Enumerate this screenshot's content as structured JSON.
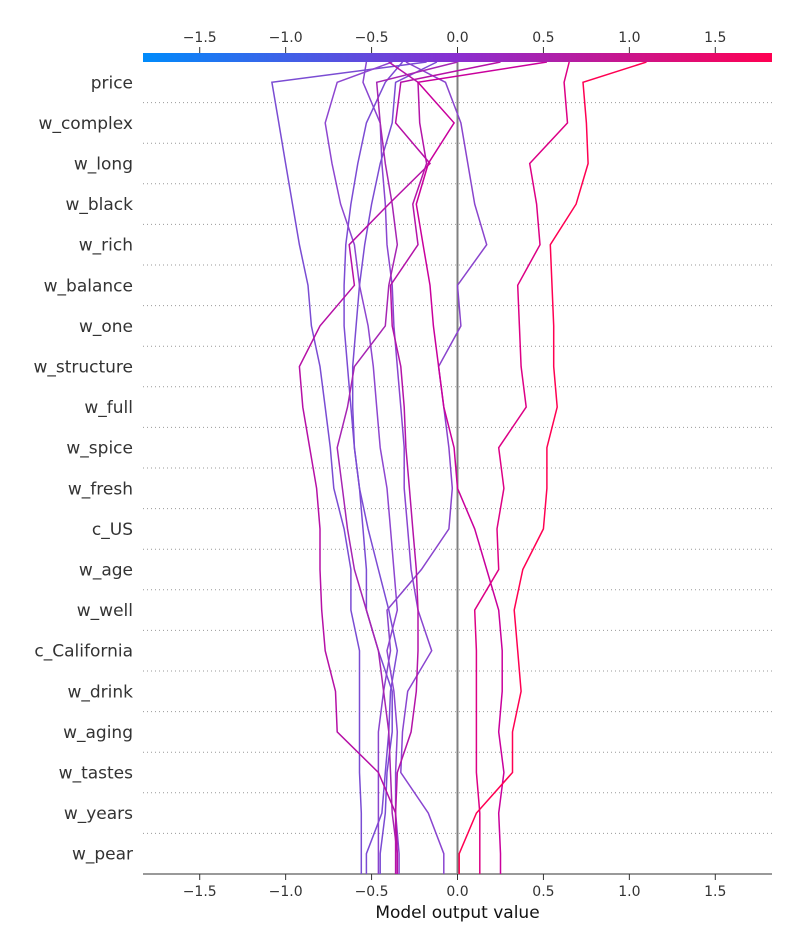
{
  "chart_data": {
    "type": "line",
    "subtype": "shap-decision-plot",
    "xlabel": "Model output value",
    "xlim": [
      -1.83,
      1.83
    ],
    "x_ticks": [
      -1.5,
      -1.0,
      -0.5,
      0.0,
      0.5,
      1.0,
      1.5
    ],
    "x_tick_labels": [
      "−1.5",
      "−1.0",
      "−0.5",
      "0.0",
      "0.5",
      "1.0",
      "1.5"
    ],
    "base_value": 0.0,
    "colormap": {
      "low": "#008bfb",
      "mid": "#8a2ed0",
      "high": "#ff0052"
    },
    "features": [
      "price",
      "w_complex",
      "w_long",
      "w_black",
      "w_rich",
      "w_balance",
      "w_one",
      "w_structure",
      "w_full",
      "w_spice",
      "w_fresh",
      "c_US",
      "w_age",
      "w_well",
      "c_California",
      "w_drink",
      "w_aging",
      "w_tastes",
      "w_years",
      "w_pear"
    ],
    "series": [
      {
        "color": "#8a45d0",
        "values": [
          -0.53,
          -0.55,
          -0.45,
          -0.44,
          -0.42,
          -0.41,
          -0.38,
          -0.37,
          -0.35,
          -0.33,
          -0.31,
          -0.31,
          -0.29,
          -0.27,
          -0.23,
          -0.15,
          -0.29,
          -0.32,
          -0.33,
          -0.17,
          -0.08
        ]
      },
      {
        "color": "#7c4bd4",
        "values": [
          -0.32,
          -0.42,
          -0.53,
          -0.58,
          -0.62,
          -0.65,
          -0.66,
          -0.66,
          -0.64,
          -0.62,
          -0.6,
          -0.57,
          -0.52,
          -0.46,
          -0.4,
          -0.35,
          -0.39,
          -0.4,
          -0.42,
          -0.44,
          -0.53
        ]
      },
      {
        "color": "#7b4bd3",
        "values": [
          -0.12,
          -0.36,
          -0.38,
          -0.45,
          -0.5,
          -0.54,
          -0.57,
          -0.59,
          -0.61,
          -0.61,
          -0.6,
          -0.57,
          -0.55,
          -0.53,
          -0.53,
          -0.46,
          -0.38,
          -0.38,
          -0.41,
          -0.42,
          -0.45
        ]
      },
      {
        "color": "#7a4cd3",
        "values": [
          -0.18,
          -1.08,
          -1.04,
          -1.0,
          -0.96,
          -0.92,
          -0.87,
          -0.85,
          -0.8,
          -0.77,
          -0.74,
          -0.72,
          -0.66,
          -0.62,
          -0.62,
          -0.57,
          -0.57,
          -0.57,
          -0.57,
          -0.56,
          -0.56
        ]
      },
      {
        "color": "#8e46d0",
        "values": [
          -0.38,
          -0.7,
          -0.77,
          -0.73,
          -0.68,
          -0.6,
          -0.57,
          -0.52,
          -0.49,
          -0.47,
          -0.45,
          -0.41,
          -0.39,
          -0.37,
          -0.35,
          -0.41,
          -0.37,
          -0.35,
          -0.36,
          -0.36,
          -0.34
        ]
      },
      {
        "color": "#8a44cd",
        "values": [
          -0.3,
          -0.07,
          0.02,
          0.06,
          0.1,
          0.17,
          0.0,
          0.02,
          -0.11,
          -0.08,
          -0.05,
          -0.03,
          -0.05,
          -0.21,
          -0.41,
          -0.39,
          -0.43,
          -0.46,
          -0.46,
          -0.46,
          -0.46
        ]
      },
      {
        "color": "#a625b3",
        "values": [
          0.0,
          -0.47,
          -0.45,
          -0.42,
          -0.38,
          -0.35,
          -0.4,
          -0.42,
          -0.6,
          -0.64,
          -0.7,
          -0.67,
          -0.64,
          -0.6,
          -0.53,
          -0.46,
          -0.43,
          -0.4,
          -0.39,
          -0.38,
          -0.35
        ]
      },
      {
        "color": "#b414a8",
        "values": [
          -0.4,
          -0.23,
          -0.22,
          -0.18,
          -0.26,
          -0.23,
          -0.39,
          -0.38,
          -0.33,
          -0.31,
          -0.3,
          -0.28,
          -0.26,
          -0.24,
          -0.23,
          -0.23,
          -0.24,
          -0.27,
          -0.35,
          -0.36,
          -0.36
        ]
      },
      {
        "color": "#b610a6",
        "values": [
          0.25,
          -0.33,
          -0.36,
          -0.16,
          -0.4,
          -0.63,
          -0.6,
          -0.8,
          -0.92,
          -0.9,
          -0.86,
          -0.82,
          -0.8,
          -0.8,
          -0.79,
          -0.77,
          -0.71,
          -0.7,
          -0.46,
          -0.36,
          -0.35
        ]
      },
      {
        "color": "#c9009c",
        "values": [
          0.52,
          -0.23,
          -0.02,
          -0.17,
          -0.24,
          -0.2,
          -0.16,
          -0.14,
          -0.11,
          -0.08,
          -0.02,
          0.0,
          0.1,
          0.17,
          0.24,
          0.26,
          0.26,
          0.24,
          0.27,
          0.24,
          0.25
        ]
      },
      {
        "color": "#dd0085",
        "values": [
          0.65,
          0.62,
          0.64,
          0.42,
          0.46,
          0.48,
          0.35,
          0.36,
          0.37,
          0.4,
          0.24,
          0.27,
          0.23,
          0.24,
          0.1,
          0.11,
          0.11,
          0.11,
          0.11,
          0.13,
          0.13
        ]
      },
      {
        "color": "#ff0052",
        "values": [
          1.1,
          0.73,
          0.75,
          0.76,
          0.69,
          0.54,
          0.55,
          0.56,
          0.56,
          0.58,
          0.52,
          0.52,
          0.5,
          0.38,
          0.33,
          0.35,
          0.37,
          0.32,
          0.32,
          0.11,
          0.01
        ]
      }
    ]
  }
}
